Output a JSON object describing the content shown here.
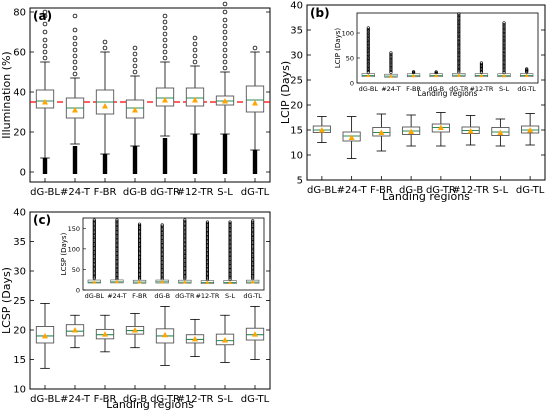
{
  "chart_data": [
    {
      "panel": "(a)",
      "type": "box",
      "ylabel": "Illumination (%)",
      "xlabel": "",
      "ylim": [
        -5,
        82
      ],
      "yticks": [
        0,
        20,
        40,
        60,
        80
      ],
      "reference_line": {
        "value": 35,
        "color": "#ff0000",
        "style": "dashed"
      },
      "categories": [
        "dG-BL",
        "#24-T",
        "F-BR",
        "dG-B",
        "dG-TR",
        "#12-TR",
        "S-L",
        "dG-TL"
      ],
      "boxes": [
        {
          "q1": 32,
          "median": 35.5,
          "q3": 41,
          "whislo": 7,
          "whishi": 55,
          "mean": 35,
          "fliers_hi": [
            57,
            60,
            63,
            66,
            70,
            74,
            78,
            80
          ],
          "fliers_lo": [
            0,
            1,
            2,
            3,
            4,
            5,
            6
          ]
        },
        {
          "q1": 27,
          "median": 32,
          "q3": 37,
          "whislo": 14,
          "whishi": 47,
          "mean": 31,
          "fliers_hi": [
            49,
            52,
            55,
            58,
            61,
            64,
            67,
            71,
            78
          ],
          "fliers_lo": [
            0,
            2,
            4,
            6,
            8,
            10,
            12
          ]
        },
        {
          "q1": 29,
          "median": 35,
          "q3": 41,
          "whislo": 9,
          "whishi": 60,
          "mean": 33,
          "fliers_hi": [
            62,
            65
          ],
          "fliers_lo": [
            0,
            2,
            4,
            6,
            8
          ]
        },
        {
          "q1": 27,
          "median": 32,
          "q3": 36,
          "whislo": 13,
          "whishi": 48,
          "mean": 31,
          "fliers_hi": [
            50,
            53,
            56,
            59,
            62
          ],
          "fliers_lo": [
            0,
            2,
            4,
            6,
            8,
            10,
            12
          ]
        },
        {
          "q1": 33,
          "median": 37,
          "q3": 42,
          "whislo": 18,
          "whishi": 55,
          "mean": 36,
          "fliers_hi": [
            57,
            60,
            63,
            66,
            69,
            72,
            75,
            78
          ],
          "fliers_lo": [
            0,
            2,
            4,
            6,
            8,
            10,
            12,
            14,
            16
          ]
        },
        {
          "q1": 33,
          "median": 37,
          "q3": 42,
          "whislo": 19,
          "whishi": 53,
          "mean": 36,
          "fliers_hi": [
            55,
            58,
            61,
            64,
            67
          ],
          "fliers_lo": [
            0,
            2,
            4,
            6,
            8,
            10,
            12,
            14,
            16,
            18
          ]
        },
        {
          "q1": 33.5,
          "median": 35.5,
          "q3": 38,
          "whislo": 19,
          "whishi": 50,
          "mean": 35.5,
          "fliers_hi": [
            52,
            55,
            58,
            61,
            64,
            67,
            70,
            73,
            76,
            80,
            84
          ],
          "fliers_lo": [
            0,
            2,
            4,
            6,
            8,
            10,
            12,
            14,
            16,
            18
          ]
        },
        {
          "q1": 30,
          "median": 36,
          "q3": 43,
          "whislo": 11,
          "whishi": 60,
          "mean": 34.5,
          "fliers_hi": [
            62
          ],
          "fliers_lo": [
            0,
            2,
            4,
            6,
            8,
            10
          ]
        }
      ]
    },
    {
      "panel": "(b)",
      "type": "box",
      "ylabel": "LCIP (Days)",
      "xlabel": "Landing regions",
      "ylim": [
        5,
        40
      ],
      "yticks": [
        5,
        10,
        15,
        20,
        25,
        30,
        35,
        40
      ],
      "categories": [
        "dG-BL",
        "#24-T",
        "F-BR",
        "dG-B",
        "dG-TR",
        "#12-TR",
        "S-L",
        "dG-TL"
      ],
      "boxes": [
        {
          "q1": 14.5,
          "median": 15,
          "q3": 15.8,
          "whislo": 12.5,
          "whishi": 17.7,
          "mean": 15
        },
        {
          "q1": 12.8,
          "median": 13.8,
          "q3": 14.6,
          "whislo": 9.3,
          "whishi": 17.7,
          "mean": 13.5
        },
        {
          "q1": 13.8,
          "median": 14.5,
          "q3": 15.5,
          "whislo": 10.8,
          "whishi": 18.2,
          "mean": 14.5
        },
        {
          "q1": 14.1,
          "median": 14.8,
          "q3": 15.6,
          "whislo": 11.8,
          "whishi": 18,
          "mean": 14.7
        },
        {
          "q1": 14.6,
          "median": 15.5,
          "q3": 16.2,
          "whislo": 11.8,
          "whishi": 18.5,
          "mean": 15.5
        },
        {
          "q1": 14.3,
          "median": 14.9,
          "q3": 15.6,
          "whislo": 12,
          "whishi": 17.9,
          "mean": 14.8
        },
        {
          "q1": 13.9,
          "median": 14.6,
          "q3": 15.5,
          "whislo": 11.8,
          "whishi": 17.2,
          "mean": 14.5
        },
        {
          "q1": 14.4,
          "median": 15,
          "q3": 15.8,
          "whislo": 12,
          "whishi": 18.3,
          "mean": 15
        }
      ],
      "inset": {
        "ylabel": "LCIP (Days)",
        "xlabel": "Landing regions",
        "ylim": [
          0,
          140
        ],
        "yticks": [
          0,
          50,
          100
        ],
        "fliers_top": [
          110,
          60,
          18,
          18,
          138,
          40,
          120,
          28
        ]
      }
    },
    {
      "panel": "(c)",
      "type": "box",
      "ylabel": "LCSP (Days)",
      "xlabel": "Landing regions",
      "ylim": [
        10,
        40
      ],
      "yticks": [
        10,
        15,
        20,
        25,
        30,
        35,
        40
      ],
      "categories": [
        "dG-BL",
        "#24-T",
        "F-BR",
        "dG-B",
        "dG-TR",
        "#12-TR",
        "S-L",
        "dG-TL"
      ],
      "boxes": [
        {
          "q1": 17.8,
          "median": 19,
          "q3": 20.6,
          "whislo": 13.5,
          "whishi": 24.5,
          "mean": 19
        },
        {
          "q1": 19,
          "median": 19.8,
          "q3": 20.9,
          "whislo": 17,
          "whishi": 22.5,
          "mean": 20
        },
        {
          "q1": 18.5,
          "median": 19.2,
          "q3": 20.1,
          "whislo": 16.3,
          "whishi": 22.5,
          "mean": 19.3
        },
        {
          "q1": 19.3,
          "median": 19.9,
          "q3": 20.6,
          "whislo": 17,
          "whishi": 22.8,
          "mean": 20
        },
        {
          "q1": 17.8,
          "median": 19,
          "q3": 20.2,
          "whislo": 14,
          "whishi": 24,
          "mean": 19.2
        },
        {
          "q1": 17.8,
          "median": 18.4,
          "q3": 19.2,
          "whislo": 15.5,
          "whishi": 21.8,
          "mean": 18.5
        },
        {
          "q1": 17.5,
          "median": 18.2,
          "q3": 19.3,
          "whislo": 14.5,
          "whishi": 22.5,
          "mean": 18.3
        },
        {
          "q1": 18.3,
          "median": 19.2,
          "q3": 20.3,
          "whislo": 15,
          "whishi": 24,
          "mean": 19.3
        }
      ],
      "inset": {
        "ylabel": "LCSP (Days)",
        "xlabel": "",
        "ylim": [
          0,
          175
        ],
        "yticks": [
          0,
          50,
          100,
          150
        ],
        "fliers_top": [
          170,
          170,
          160,
          158,
          170,
          165,
          165,
          168
        ]
      }
    }
  ],
  "colors": {
    "box": "#555555",
    "median": "#2e8b57",
    "mean": "#ffa500",
    "refline": "#ff0000",
    "flier": "#000000"
  }
}
